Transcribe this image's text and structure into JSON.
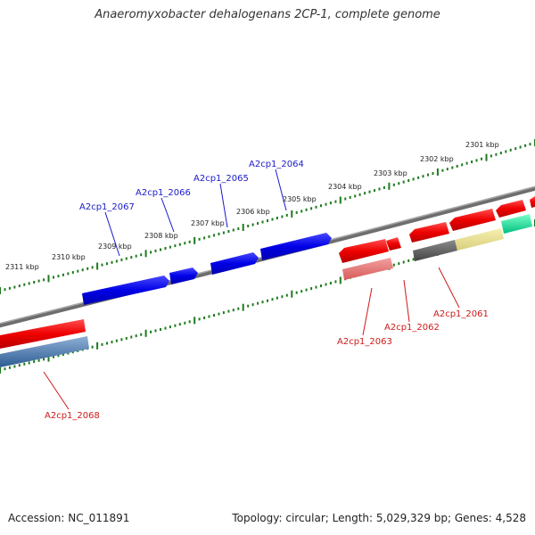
{
  "title": "Anaeromyxobacter dehalogenans 2CP-1, complete genome",
  "footer": {
    "accession": "Accession: NC_011891",
    "summary": "Topology: circular; Length: 5,029,329 bp; Genes: 4,528"
  },
  "colors": {
    "backbone": "#7a7a7a",
    "forward_label": "#1a1acc",
    "reverse_label": "#cc1a1a",
    "tick": "#1e7a1e"
  },
  "kbp_ticks": [
    {
      "label": "2301 kbp"
    },
    {
      "label": "2302 kbp"
    },
    {
      "label": "2303 kbp"
    },
    {
      "label": "2304 kbp"
    },
    {
      "label": "2305 kbp"
    },
    {
      "label": "2306 kbp"
    },
    {
      "label": "2307 kbp"
    },
    {
      "label": "2308 kbp"
    },
    {
      "label": "2309 kbp"
    },
    {
      "label": "2310 kbp"
    },
    {
      "label": "2311 kbp"
    }
  ],
  "genes_forward": [
    {
      "id": "A2cp1_2064",
      "color": "#0000ee"
    },
    {
      "id": "A2cp1_2065",
      "color": "#0000ee"
    },
    {
      "id": "A2cp1_2066",
      "color": "#0000ee"
    },
    {
      "id": "A2cp1_2067",
      "color": "#0000ee"
    }
  ],
  "genes_reverse": [
    {
      "id": "A2cp1_2061",
      "color": "#555555"
    },
    {
      "id": "A2cp1_2062",
      "color": "#ee0000"
    },
    {
      "id": "A2cp1_2063",
      "color": "#e26262"
    },
    {
      "id": "A2cp1_2068",
      "color": "#3f6fa8"
    }
  ]
}
